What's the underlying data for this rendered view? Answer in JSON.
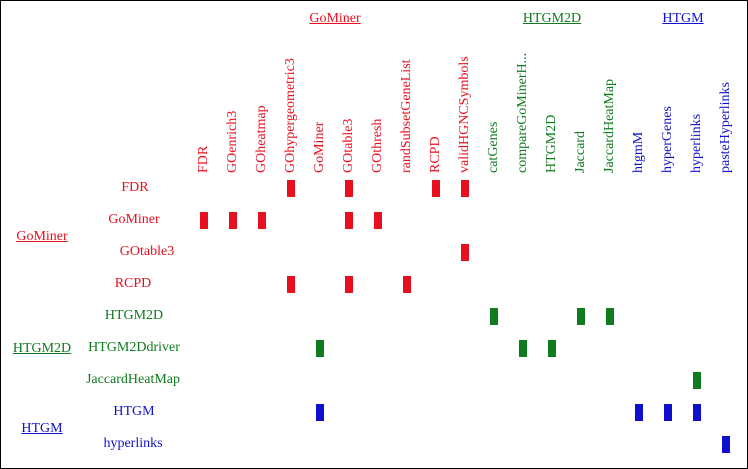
{
  "colors": {
    "GoMiner": "#e8101e",
    "HTGM2D": "#0f7a1e",
    "HTGM": "#1010cc"
  },
  "groups": [
    {
      "key": "GoMiner",
      "label": "GoMiner"
    },
    {
      "key": "HTGM2D",
      "label": "HTGM2D"
    },
    {
      "key": "HTGM",
      "label": "HTGM"
    }
  ],
  "columns": [
    {
      "label": "FDR",
      "group": "GoMiner"
    },
    {
      "label": "GOenrich3",
      "group": "GoMiner"
    },
    {
      "label": "GOheatmap",
      "group": "GoMiner"
    },
    {
      "label": "GOhypergeometric3",
      "group": "GoMiner"
    },
    {
      "label": "GoMiner",
      "group": "GoMiner"
    },
    {
      "label": "GOtable3",
      "group": "GoMiner"
    },
    {
      "label": "GOthresh",
      "group": "GoMiner"
    },
    {
      "label": "randSubsetGeneList",
      "group": "GoMiner"
    },
    {
      "label": "RCPD",
      "group": "GoMiner"
    },
    {
      "label": "validHGNCSymbols",
      "group": "GoMiner"
    },
    {
      "label": "catGenes",
      "group": "HTGM2D"
    },
    {
      "label": "compareGoMinerH...",
      "group": "HTGM2D"
    },
    {
      "label": "HTGM2D",
      "group": "HTGM2D"
    },
    {
      "label": "Jaccard",
      "group": "HTGM2D"
    },
    {
      "label": "JaccardHeatMap",
      "group": "HTGM2D"
    },
    {
      "label": "htgmM",
      "group": "HTGM"
    },
    {
      "label": "hyperGenes",
      "group": "HTGM"
    },
    {
      "label": "hyperlinks",
      "group": "HTGM"
    },
    {
      "label": "pasteHyperlinks",
      "group": "HTGM"
    }
  ],
  "rows": [
    {
      "label": "FDR",
      "group": "GoMiner",
      "cols": [
        3,
        5,
        8,
        9
      ]
    },
    {
      "label": "GoMiner",
      "group": "GoMiner",
      "cols": [
        0,
        1,
        2,
        5,
        6
      ]
    },
    {
      "label": "GOtable3",
      "group": "GoMiner",
      "cols": [
        9
      ]
    },
    {
      "label": "RCPD",
      "group": "GoMiner",
      "cols": [
        3,
        5,
        7
      ]
    },
    {
      "label": "HTGM2D",
      "group": "HTGM2D",
      "cols": [
        10,
        13,
        14
      ]
    },
    {
      "label": "HTGM2Ddriver",
      "group": "HTGM2D",
      "cols": [
        4,
        11,
        12
      ]
    },
    {
      "label": "JaccardHeatMap",
      "group": "HTGM2D",
      "cols": [
        17
      ]
    },
    {
      "label": "HTGM",
      "group": "HTGM",
      "cols": [
        4,
        15,
        16,
        17
      ]
    },
    {
      "label": "hyperlinks",
      "group": "HTGM",
      "cols": [
        18
      ]
    }
  ]
}
